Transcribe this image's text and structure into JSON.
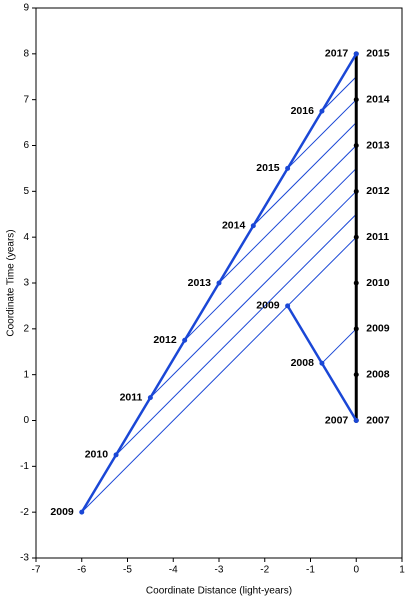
{
  "chart_data": {
    "type": "line",
    "x_label": "Coordinate Distance (light-years)",
    "y_label": "Coordinate Time (years)",
    "xlim": [
      -7,
      1
    ],
    "xticks": [
      -7,
      -6,
      -5,
      -4,
      -3,
      -2,
      -1,
      0,
      1
    ],
    "ylim": [
      -3,
      9
    ],
    "yticks": [
      -3,
      -2,
      -1,
      0,
      1,
      2,
      3,
      4,
      5,
      6,
      7,
      8,
      9
    ],
    "series": [
      {
        "color": "#000000",
        "label_side": "right",
        "x": [
          0,
          0,
          0,
          0,
          0,
          0,
          0,
          0,
          0
        ],
        "values": [
          0,
          1,
          2,
          3,
          4,
          5,
          6,
          7,
          8
        ],
        "point_labels": [
          "2007",
          "2008",
          "2009",
          "2010",
          "2011",
          "2012",
          "2013",
          "2014",
          "2015"
        ]
      },
      {
        "color": "#1a47d6",
        "label_side": "left",
        "x": [
          -6,
          -5.25,
          -4.5,
          -3.75,
          -3,
          -2.25,
          -1.5,
          -0.75,
          0
        ],
        "values": [
          -2,
          -0.75,
          0.5,
          1.75,
          3,
          4.25,
          5.5,
          6.75,
          8
        ],
        "point_labels": [
          "2009",
          "2010",
          "2011",
          "2012",
          "2013",
          "2014",
          "2015",
          "2016",
          "2017"
        ]
      },
      {
        "color": "#1a47d6",
        "label_side": "left",
        "x": [
          0,
          -0.75,
          -1.5
        ],
        "values": [
          0,
          1.25,
          2.5
        ],
        "point_labels": [
          "2007",
          "2008",
          "2009"
        ]
      }
    ],
    "signal_color": "#1a47d6",
    "signals": [
      {
        "x": [
          -6,
          0
        ],
        "values": [
          -2,
          4
        ]
      },
      {
        "x": [
          -5.25,
          0
        ],
        "values": [
          -0.75,
          4.5
        ]
      },
      {
        "x": [
          -4.5,
          0
        ],
        "values": [
          0.5,
          5
        ]
      },
      {
        "x": [
          -3.75,
          0
        ],
        "values": [
          1.75,
          5.5
        ]
      },
      {
        "x": [
          -3,
          0
        ],
        "values": [
          3,
          6
        ]
      },
      {
        "x": [
          -2.25,
          0
        ],
        "values": [
          4.25,
          6.5
        ]
      },
      {
        "x": [
          -1.5,
          0
        ],
        "values": [
          5.5,
          7
        ]
      },
      {
        "x": [
          -0.75,
          0
        ],
        "values": [
          6.75,
          7.5
        ]
      },
      {
        "x": [
          -0.75,
          0
        ],
        "values": [
          1.25,
          2
        ]
      }
    ]
  }
}
